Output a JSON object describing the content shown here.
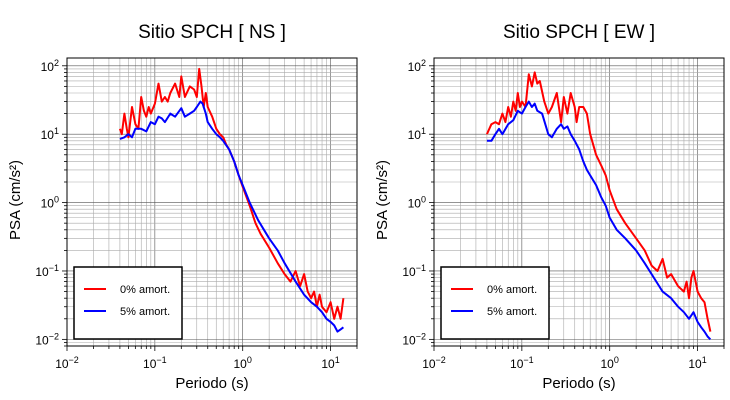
{
  "chart_data": [
    {
      "type": "line",
      "title": "Sitio SPCH [ NS ]",
      "xlabel": "Periodo (s)",
      "ylabel": "PSA (cm/s²)",
      "xscale": "log",
      "yscale": "log",
      "xlim": [
        0.01,
        20
      ],
      "ylim": [
        0.008,
        130
      ],
      "grid": true,
      "legend_position": "bottom-left",
      "x_ticks": [
        {
          "base": "10",
          "exp": "−2"
        },
        {
          "base": "10",
          "exp": "−1"
        },
        {
          "base": "10",
          "exp": "0"
        },
        {
          "base": "10",
          "exp": "1"
        }
      ],
      "y_ticks": [
        {
          "base": "10",
          "exp": "−2"
        },
        {
          "base": "10",
          "exp": "−1"
        },
        {
          "base": "10",
          "exp": "0"
        },
        {
          "base": "10",
          "exp": "1"
        },
        {
          "base": "10",
          "exp": "2"
        }
      ],
      "series": [
        {
          "name": "0% amort.",
          "color": "#ff0000",
          "x": [
            0.04,
            0.042,
            0.045,
            0.048,
            0.05,
            0.055,
            0.06,
            0.065,
            0.07,
            0.075,
            0.08,
            0.085,
            0.09,
            0.1,
            0.11,
            0.12,
            0.13,
            0.14,
            0.15,
            0.17,
            0.19,
            0.2,
            0.22,
            0.25,
            0.28,
            0.3,
            0.32,
            0.34,
            0.36,
            0.38,
            0.4,
            0.45,
            0.5,
            0.55,
            0.6,
            0.65,
            0.7,
            0.8,
            0.9,
            1.0,
            1.2,
            1.4,
            1.6,
            2.0,
            2.5,
            3.0,
            3.5,
            4.0,
            4.5,
            5.0,
            5.5,
            6.0,
            6.5,
            7.0,
            7.5,
            8.0,
            9.0,
            10.0,
            11.0,
            12.0,
            13.0,
            14.0
          ],
          "y": [
            12,
            10,
            20,
            12,
            9,
            25,
            14,
            12,
            35,
            22,
            18,
            25,
            20,
            28,
            55,
            30,
            35,
            30,
            40,
            55,
            35,
            70,
            35,
            50,
            45,
            35,
            90,
            50,
            25,
            40,
            25,
            18,
            12,
            10,
            9,
            7,
            6,
            4,
            2.5,
            1.7,
            0.9,
            0.5,
            0.35,
            0.22,
            0.13,
            0.09,
            0.07,
            0.1,
            0.06,
            0.09,
            0.05,
            0.04,
            0.05,
            0.03,
            0.045,
            0.03,
            0.025,
            0.035,
            0.02,
            0.03,
            0.02,
            0.04
          ]
        },
        {
          "name": "5% amort.",
          "color": "#0000ff",
          "x": [
            0.04,
            0.045,
            0.05,
            0.055,
            0.06,
            0.07,
            0.08,
            0.09,
            0.1,
            0.11,
            0.12,
            0.13,
            0.15,
            0.17,
            0.2,
            0.22,
            0.25,
            0.28,
            0.3,
            0.33,
            0.35,
            0.38,
            0.4,
            0.45,
            0.5,
            0.55,
            0.6,
            0.7,
            0.8,
            0.9,
            1.0,
            1.2,
            1.5,
            2.0,
            2.5,
            3.0,
            4.0,
            5.0,
            6.0,
            7.0,
            8.0,
            9.0,
            10.0,
            11.0,
            12.0,
            13.0,
            14.0
          ],
          "y": [
            8.5,
            9,
            10,
            9,
            12,
            12,
            11,
            15,
            14,
            18,
            17,
            15,
            20,
            18,
            24,
            18,
            20,
            22,
            25,
            30,
            28,
            20,
            15,
            12,
            10,
            9,
            8,
            6,
            4,
            2.5,
            1.8,
            1.0,
            0.55,
            0.3,
            0.2,
            0.13,
            0.07,
            0.045,
            0.035,
            0.03,
            0.025,
            0.02,
            0.018,
            0.016,
            0.013,
            0.014,
            0.015
          ]
        }
      ]
    },
    {
      "type": "line",
      "title": "Sitio SPCH [ EW ]",
      "xlabel": "Periodo (s)",
      "ylabel": "PSA (cm/s²)",
      "xscale": "log",
      "yscale": "log",
      "xlim": [
        0.01,
        20
      ],
      "ylim": [
        0.008,
        130
      ],
      "grid": true,
      "legend_position": "bottom-left",
      "x_ticks": [
        {
          "base": "10",
          "exp": "−2"
        },
        {
          "base": "10",
          "exp": "−1"
        },
        {
          "base": "10",
          "exp": "0"
        },
        {
          "base": "10",
          "exp": "1"
        }
      ],
      "y_ticks": [
        {
          "base": "10",
          "exp": "−2"
        },
        {
          "base": "10",
          "exp": "−1"
        },
        {
          "base": "10",
          "exp": "0"
        },
        {
          "base": "10",
          "exp": "1"
        },
        {
          "base": "10",
          "exp": "2"
        }
      ],
      "series": [
        {
          "name": "0% amort.",
          "color": "#ff0000",
          "x": [
            0.04,
            0.045,
            0.05,
            0.055,
            0.06,
            0.065,
            0.07,
            0.075,
            0.08,
            0.085,
            0.09,
            0.095,
            0.1,
            0.11,
            0.12,
            0.13,
            0.14,
            0.15,
            0.16,
            0.18,
            0.2,
            0.22,
            0.25,
            0.28,
            0.3,
            0.33,
            0.36,
            0.4,
            0.42,
            0.45,
            0.5,
            0.55,
            0.6,
            0.7,
            0.8,
            0.9,
            1.0,
            1.2,
            1.5,
            2.0,
            2.5,
            3.0,
            3.5,
            4.0,
            4.5,
            5.0,
            6.0,
            7.0,
            7.5,
            8.0,
            8.5,
            9.0,
            10.0,
            11.0,
            12.0,
            13.0,
            14.0
          ],
          "y": [
            10,
            14,
            15,
            14,
            20,
            15,
            25,
            18,
            30,
            22,
            40,
            25,
            30,
            25,
            75,
            50,
            80,
            55,
            60,
            30,
            20,
            25,
            40,
            15,
            35,
            20,
            40,
            25,
            15,
            25,
            25,
            20,
            10,
            5,
            3.5,
            2.5,
            1.5,
            0.8,
            0.5,
            0.3,
            0.2,
            0.12,
            0.1,
            0.15,
            0.08,
            0.09,
            0.06,
            0.05,
            0.07,
            0.04,
            0.08,
            0.1,
            0.05,
            0.04,
            0.035,
            0.02,
            0.013
          ]
        },
        {
          "name": "5% amort.",
          "color": "#0000ff",
          "x": [
            0.04,
            0.045,
            0.05,
            0.055,
            0.06,
            0.07,
            0.08,
            0.09,
            0.1,
            0.11,
            0.12,
            0.13,
            0.14,
            0.15,
            0.17,
            0.2,
            0.22,
            0.25,
            0.28,
            0.3,
            0.33,
            0.36,
            0.4,
            0.45,
            0.5,
            0.55,
            0.6,
            0.7,
            0.8,
            0.9,
            1.0,
            1.2,
            1.5,
            2.0,
            2.5,
            3.0,
            4.0,
            5.0,
            6.0,
            7.0,
            8.0,
            9.0,
            10.0,
            11.0,
            12.0,
            13.0,
            14.0
          ],
          "y": [
            8,
            8,
            10,
            12,
            10,
            14,
            16,
            22,
            20,
            25,
            30,
            25,
            28,
            22,
            20,
            10,
            9,
            12,
            14,
            12,
            13,
            10,
            8,
            6,
            4,
            3,
            2.5,
            1.8,
            1.2,
            0.9,
            0.6,
            0.4,
            0.3,
            0.2,
            0.13,
            0.09,
            0.05,
            0.04,
            0.03,
            0.025,
            0.02,
            0.025,
            0.018,
            0.015,
            0.013,
            0.011,
            0.01
          ]
        }
      ]
    }
  ]
}
